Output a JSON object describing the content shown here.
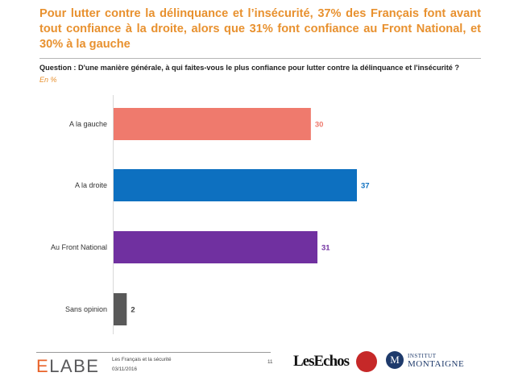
{
  "title": "Pour lutter contre la délinquance et l’insécurité, 37% des Français font avant tout confiance à la droite, alors que 31% font confiance au Front National, et 30% à la gauche",
  "question": "Question : D'une manière générale, à qui faites-vous le plus confiance pour lutter contre la délinquance et l'insécurité ?",
  "unit": "En %",
  "chart_data": {
    "type": "bar",
    "orientation": "horizontal",
    "categories": [
      "A la gauche",
      "A la droite",
      "Au Front National",
      "Sans opinion"
    ],
    "values": [
      30,
      37,
      31,
      2
    ],
    "colors": [
      "#ef7a6d",
      "#0d70c0",
      "#7030a0",
      "#595959"
    ],
    "value_label_colors": [
      "#ef7a6d",
      "#0d70c0",
      "#7030a0",
      "#404040"
    ],
    "xlim": [
      0,
      40
    ],
    "grid": false,
    "legend": "none"
  },
  "footer": {
    "logo_left": "ELABE",
    "study": "Les Français et la sécurité",
    "date": "03/11/2016",
    "page": "11",
    "logo_lesechos": "LesEchos",
    "logo_red": "Radio Classique",
    "logo_montaigne_letter": "M",
    "logo_montaigne_line1": "INSTITUT",
    "logo_montaigne_line2": "MONTAIGNE"
  }
}
